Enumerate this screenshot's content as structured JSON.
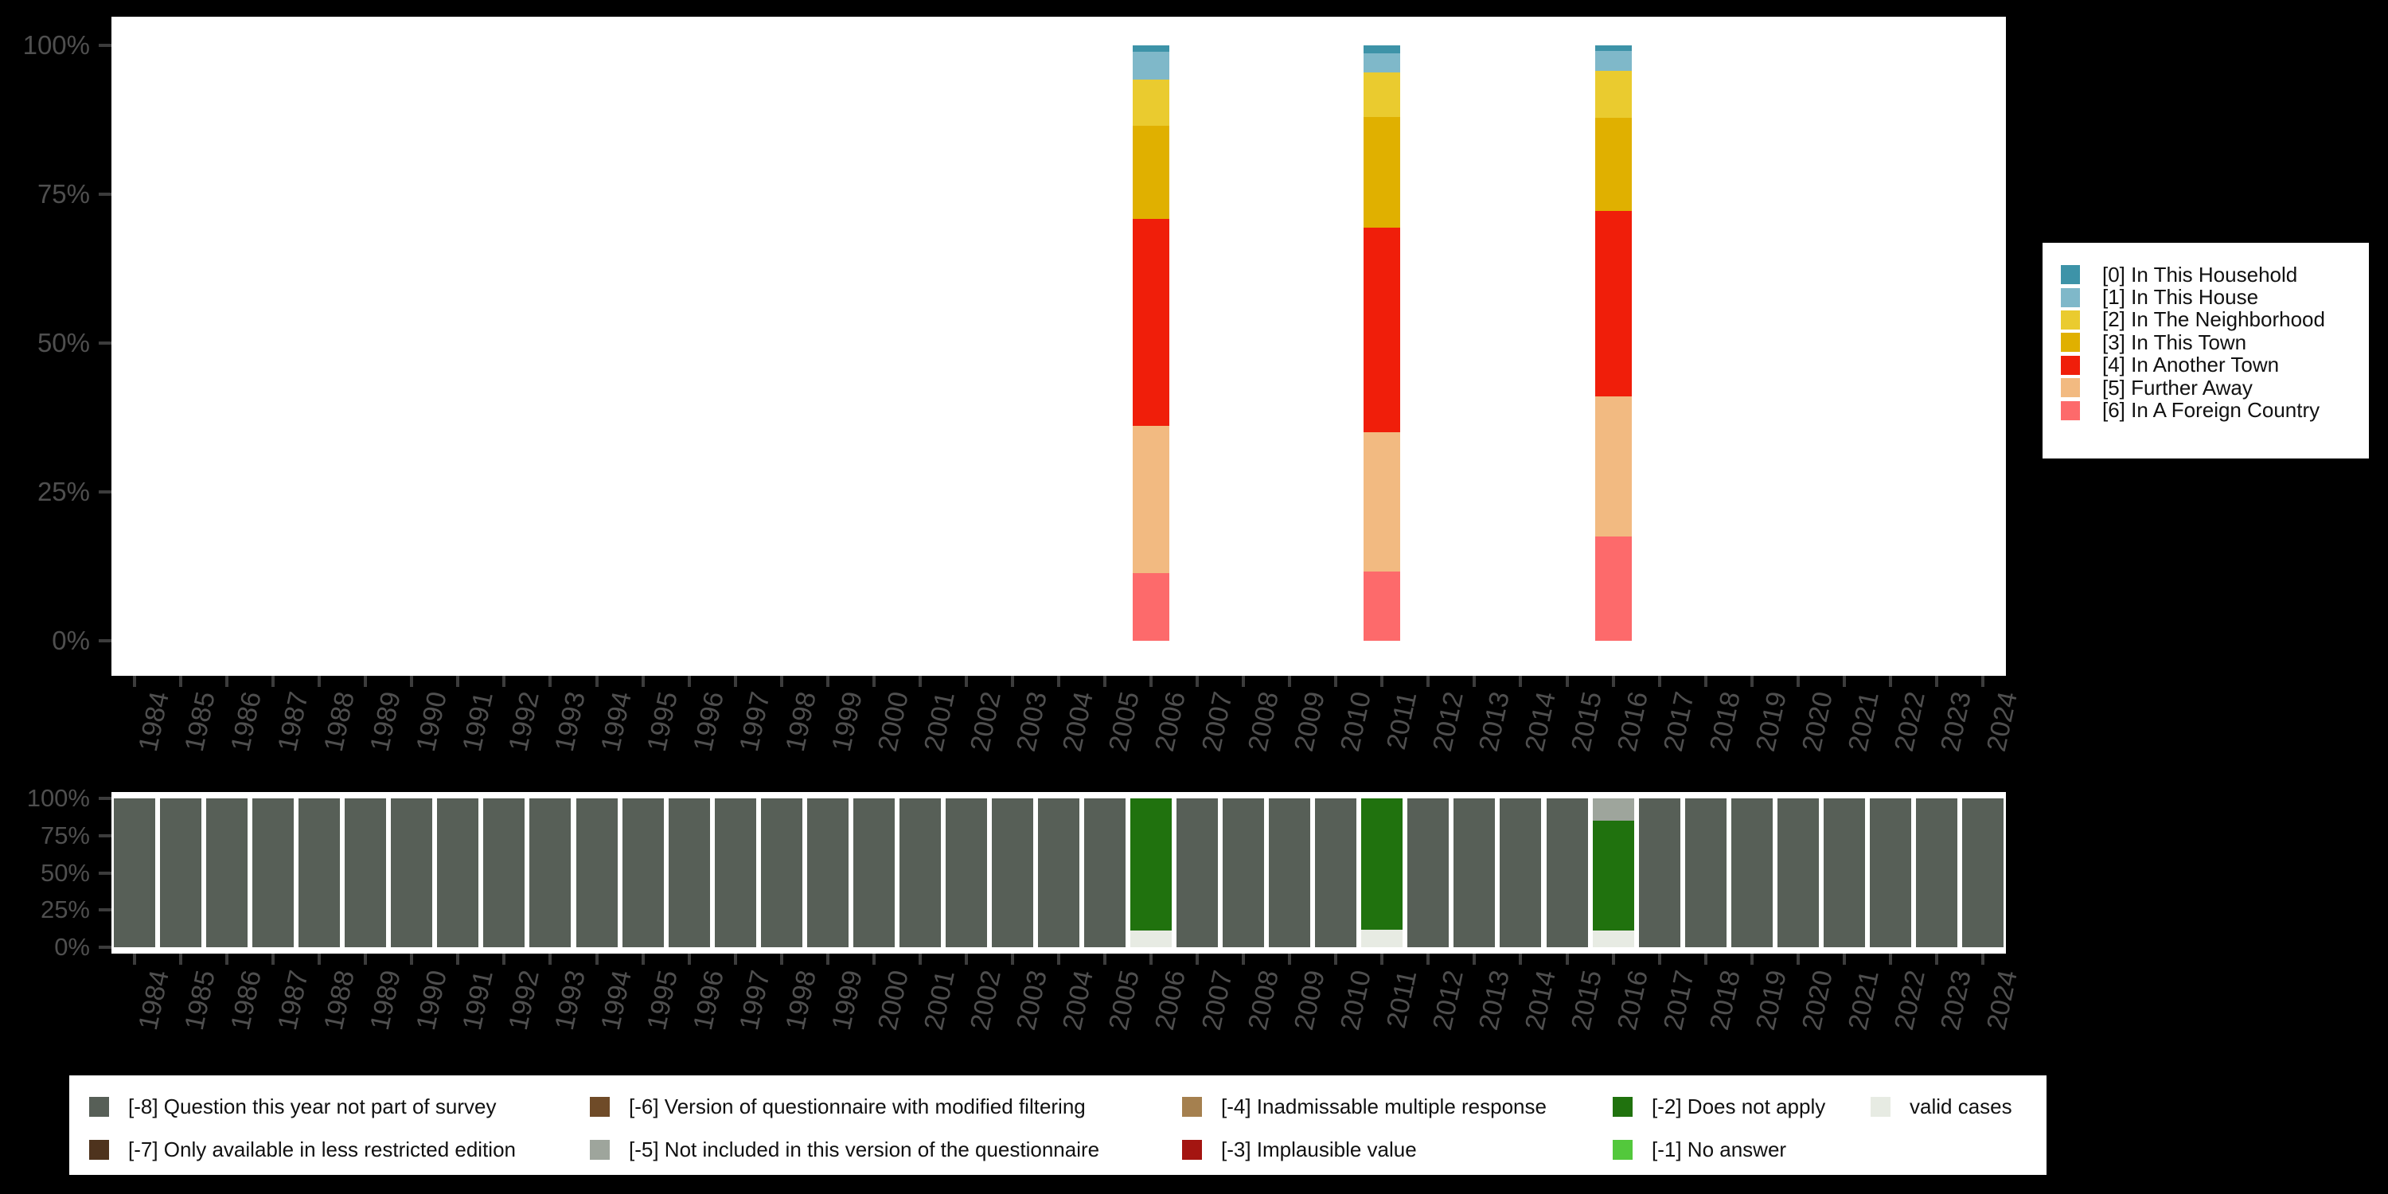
{
  "background_color": "#000000",
  "plot_background_color": "#ffffff",
  "axis_text_color": "#4f4f4f",
  "chart_data": [
    {
      "id": "distance-categories-by-year",
      "type": "bar",
      "stacked": true,
      "orientation": "vertical",
      "title": "",
      "xlabel": "",
      "ylabel": "",
      "x": [
        "1984",
        "1985",
        "1986",
        "1987",
        "1988",
        "1989",
        "1990",
        "1991",
        "1992",
        "1993",
        "1994",
        "1995",
        "1996",
        "1997",
        "1998",
        "1999",
        "2000",
        "2001",
        "2002",
        "2003",
        "2004",
        "2005",
        "2006",
        "2007",
        "2008",
        "2009",
        "2010",
        "2011",
        "2012",
        "2013",
        "2014",
        "2015",
        "2016",
        "2017",
        "2018",
        "2019",
        "2020",
        "2021",
        "2022",
        "2023",
        "2024"
      ],
      "y_axis": {
        "tick_labels": [
          "100%",
          "75%",
          "50%",
          "25%",
          "0%"
        ],
        "range_pct": [
          0,
          100
        ],
        "grid": false
      },
      "legend_position": "right",
      "categories": [
        {
          "id": "c0",
          "label": "[0] In This Household",
          "color": "#3D93A8"
        },
        {
          "id": "c1",
          "label": "[1] In This House",
          "color": "#7FB8C9"
        },
        {
          "id": "c2",
          "label": "[2] In The Neighborhood",
          "color": "#EACB2F"
        },
        {
          "id": "c3",
          "label": "[3] In This Town",
          "color": "#E0B000"
        },
        {
          "id": "c4",
          "label": "[4] In Another Town",
          "color": "#F01E0A"
        },
        {
          "id": "c5",
          "label": "[5] Further Away",
          "color": "#F2BA81"
        },
        {
          "id": "c6",
          "label": "[6] In A Foreign Country",
          "color": "#FD6A6B"
        }
      ],
      "bars": [
        {
          "year": "2006",
          "segments_top_to_bottom": [
            {
              "category": "c0",
              "pct": 1.1
            },
            {
              "category": "c1",
              "pct": 4.7
            },
            {
              "category": "c2",
              "pct": 7.7
            },
            {
              "category": "c3",
              "pct": 15.6
            },
            {
              "category": "c4",
              "pct": 34.8
            },
            {
              "category": "c5",
              "pct": 24.7
            },
            {
              "category": "c6",
              "pct": 11.4
            }
          ]
        },
        {
          "year": "2011",
          "segments_top_to_bottom": [
            {
              "category": "c0",
              "pct": 1.4
            },
            {
              "category": "c1",
              "pct": 3.2
            },
            {
              "category": "c2",
              "pct": 7.5
            },
            {
              "category": "c3",
              "pct": 18.5
            },
            {
              "category": "c4",
              "pct": 34.4
            },
            {
              "category": "c5",
              "pct": 23.4
            },
            {
              "category": "c6",
              "pct": 11.6
            }
          ]
        },
        {
          "year": "2016",
          "segments_top_to_bottom": [
            {
              "category": "c0",
              "pct": 0.9
            },
            {
              "category": "c1",
              "pct": 3.4
            },
            {
              "category": "c2",
              "pct": 7.9
            },
            {
              "category": "c3",
              "pct": 15.6
            },
            {
              "category": "c4",
              "pct": 31.2
            },
            {
              "category": "c5",
              "pct": 23.5
            },
            {
              "category": "c6",
              "pct": 17.5
            }
          ]
        }
      ]
    },
    {
      "id": "missing-codes-by-year",
      "type": "bar",
      "stacked": true,
      "orientation": "vertical",
      "title": "",
      "xlabel": "",
      "ylabel": "",
      "x": [
        "1984",
        "1985",
        "1986",
        "1987",
        "1988",
        "1989",
        "1990",
        "1991",
        "1992",
        "1993",
        "1994",
        "1995",
        "1996",
        "1997",
        "1998",
        "1999",
        "2000",
        "2001",
        "2002",
        "2003",
        "2004",
        "2005",
        "2006",
        "2007",
        "2008",
        "2009",
        "2010",
        "2011",
        "2012",
        "2013",
        "2014",
        "2015",
        "2016",
        "2017",
        "2018",
        "2019",
        "2020",
        "2021",
        "2022",
        "2023",
        "2024"
      ],
      "y_axis": {
        "tick_labels": [
          "100%",
          "75%",
          "50%",
          "25%",
          "0%"
        ],
        "range_pct": [
          0,
          100
        ],
        "grid": false
      },
      "legend_position": "bottom",
      "categories": [
        {
          "id": "m8",
          "label": "[-8] Question this year not part of survey",
          "color": "#575F57"
        },
        {
          "id": "m7",
          "label": "[-7] Only available in less restricted edition",
          "color": "#4E331D"
        },
        {
          "id": "m6",
          "label": "[-6] Version of questionnaire with modified filtering",
          "color": "#6F4B28"
        },
        {
          "id": "m5",
          "label": "[-5] Not included in this version of the questionnaire",
          "color": "#9EA59C"
        },
        {
          "id": "m4",
          "label": "[-4] Inadmissable multiple response",
          "color": "#A5804F"
        },
        {
          "id": "m3",
          "label": "[-3] Implausible value",
          "color": "#A41511"
        },
        {
          "id": "m2",
          "label": "[-2] Does not apply",
          "color": "#20720E"
        },
        {
          "id": "m1",
          "label": "[-1] No answer",
          "color": "#53C83C"
        },
        {
          "id": "valid",
          "label": "valid cases",
          "color": "#E7EBE3"
        }
      ],
      "bars": [
        {
          "year": "1984",
          "segments_top_to_bottom": [
            {
              "category": "m8",
              "pct": 100
            }
          ]
        },
        {
          "year": "1985",
          "segments_top_to_bottom": [
            {
              "category": "m8",
              "pct": 100
            }
          ]
        },
        {
          "year": "1986",
          "segments_top_to_bottom": [
            {
              "category": "m8",
              "pct": 100
            }
          ]
        },
        {
          "year": "1987",
          "segments_top_to_bottom": [
            {
              "category": "m8",
              "pct": 100
            }
          ]
        },
        {
          "year": "1988",
          "segments_top_to_bottom": [
            {
              "category": "m8",
              "pct": 100
            }
          ]
        },
        {
          "year": "1989",
          "segments_top_to_bottom": [
            {
              "category": "m8",
              "pct": 100
            }
          ]
        },
        {
          "year": "1990",
          "segments_top_to_bottom": [
            {
              "category": "m8",
              "pct": 100
            }
          ]
        },
        {
          "year": "1991",
          "segments_top_to_bottom": [
            {
              "category": "m8",
              "pct": 100
            }
          ]
        },
        {
          "year": "1992",
          "segments_top_to_bottom": [
            {
              "category": "m8",
              "pct": 100
            }
          ]
        },
        {
          "year": "1993",
          "segments_top_to_bottom": [
            {
              "category": "m8",
              "pct": 100
            }
          ]
        },
        {
          "year": "1994",
          "segments_top_to_bottom": [
            {
              "category": "m8",
              "pct": 100
            }
          ]
        },
        {
          "year": "1995",
          "segments_top_to_bottom": [
            {
              "category": "m8",
              "pct": 100
            }
          ]
        },
        {
          "year": "1996",
          "segments_top_to_bottom": [
            {
              "category": "m8",
              "pct": 100
            }
          ]
        },
        {
          "year": "1997",
          "segments_top_to_bottom": [
            {
              "category": "m8",
              "pct": 100
            }
          ]
        },
        {
          "year": "1998",
          "segments_top_to_bottom": [
            {
              "category": "m8",
              "pct": 100
            }
          ]
        },
        {
          "year": "1999",
          "segments_top_to_bottom": [
            {
              "category": "m8",
              "pct": 100
            }
          ]
        },
        {
          "year": "2000",
          "segments_top_to_bottom": [
            {
              "category": "m8",
              "pct": 100
            }
          ]
        },
        {
          "year": "2001",
          "segments_top_to_bottom": [
            {
              "category": "m8",
              "pct": 100
            }
          ]
        },
        {
          "year": "2002",
          "segments_top_to_bottom": [
            {
              "category": "m8",
              "pct": 100
            }
          ]
        },
        {
          "year": "2003",
          "segments_top_to_bottom": [
            {
              "category": "m8",
              "pct": 100
            }
          ]
        },
        {
          "year": "2004",
          "segments_top_to_bottom": [
            {
              "category": "m8",
              "pct": 100
            }
          ]
        },
        {
          "year": "2005",
          "segments_top_to_bottom": [
            {
              "category": "m8",
              "pct": 100
            }
          ]
        },
        {
          "year": "2006",
          "segments_top_to_bottom": [
            {
              "category": "m2",
              "pct": 89
            },
            {
              "category": "valid",
              "pct": 11
            }
          ]
        },
        {
          "year": "2007",
          "segments_top_to_bottom": [
            {
              "category": "m8",
              "pct": 100
            }
          ]
        },
        {
          "year": "2008",
          "segments_top_to_bottom": [
            {
              "category": "m8",
              "pct": 100
            }
          ]
        },
        {
          "year": "2009",
          "segments_top_to_bottom": [
            {
              "category": "m8",
              "pct": 100
            }
          ]
        },
        {
          "year": "2010",
          "segments_top_to_bottom": [
            {
              "category": "m8",
              "pct": 100
            }
          ]
        },
        {
          "year": "2011",
          "segments_top_to_bottom": [
            {
              "category": "m2",
              "pct": 88
            },
            {
              "category": "valid",
              "pct": 12
            }
          ]
        },
        {
          "year": "2012",
          "segments_top_to_bottom": [
            {
              "category": "m8",
              "pct": 100
            }
          ]
        },
        {
          "year": "2013",
          "segments_top_to_bottom": [
            {
              "category": "m8",
              "pct": 100
            }
          ]
        },
        {
          "year": "2014",
          "segments_top_to_bottom": [
            {
              "category": "m8",
              "pct": 100
            }
          ]
        },
        {
          "year": "2015",
          "segments_top_to_bottom": [
            {
              "category": "m8",
              "pct": 100
            }
          ]
        },
        {
          "year": "2016",
          "segments_top_to_bottom": [
            {
              "category": "m5",
              "pct": 15
            },
            {
              "category": "m2",
              "pct": 74
            },
            {
              "category": "valid",
              "pct": 11
            }
          ]
        },
        {
          "year": "2017",
          "segments_top_to_bottom": [
            {
              "category": "m8",
              "pct": 100
            }
          ]
        },
        {
          "year": "2018",
          "segments_top_to_bottom": [
            {
              "category": "m8",
              "pct": 100
            }
          ]
        },
        {
          "year": "2019",
          "segments_top_to_bottom": [
            {
              "category": "m8",
              "pct": 100
            }
          ]
        },
        {
          "year": "2020",
          "segments_top_to_bottom": [
            {
              "category": "m8",
              "pct": 100
            }
          ]
        },
        {
          "year": "2021",
          "segments_top_to_bottom": [
            {
              "category": "m8",
              "pct": 100
            }
          ]
        },
        {
          "year": "2022",
          "segments_top_to_bottom": [
            {
              "category": "m8",
              "pct": 100
            }
          ]
        },
        {
          "year": "2023",
          "segments_top_to_bottom": [
            {
              "category": "m8",
              "pct": 100
            }
          ]
        },
        {
          "year": "2024",
          "segments_top_to_bottom": [
            {
              "category": "m8",
              "pct": 100
            }
          ]
        }
      ]
    }
  ]
}
